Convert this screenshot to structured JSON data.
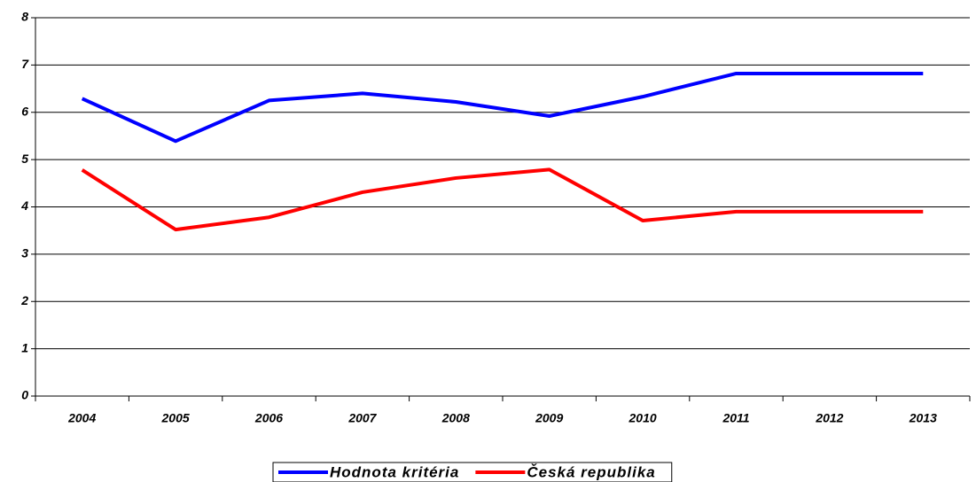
{
  "chart_data": {
    "type": "line",
    "categories": [
      "2004",
      "2005",
      "2006",
      "2007",
      "2008",
      "2009",
      "2010",
      "2011",
      "2012",
      "2013"
    ],
    "series": [
      {
        "name": "Hodnota kritéria",
        "color": "#0000ff",
        "values": [
          6.29,
          5.39,
          6.25,
          6.4,
          6.22,
          5.92,
          6.33,
          6.82,
          6.82,
          6.82
        ]
      },
      {
        "name": "Česká republika",
        "color": "#ff0000",
        "values": [
          4.78,
          3.52,
          3.78,
          4.31,
          4.61,
          4.79,
          3.71,
          3.9,
          3.9,
          3.9
        ]
      }
    ],
    "ylim": [
      0,
      8
    ],
    "yticks": [
      0,
      1,
      2,
      3,
      4,
      5,
      6,
      7,
      8
    ],
    "grid": true,
    "legend": "bottom"
  }
}
